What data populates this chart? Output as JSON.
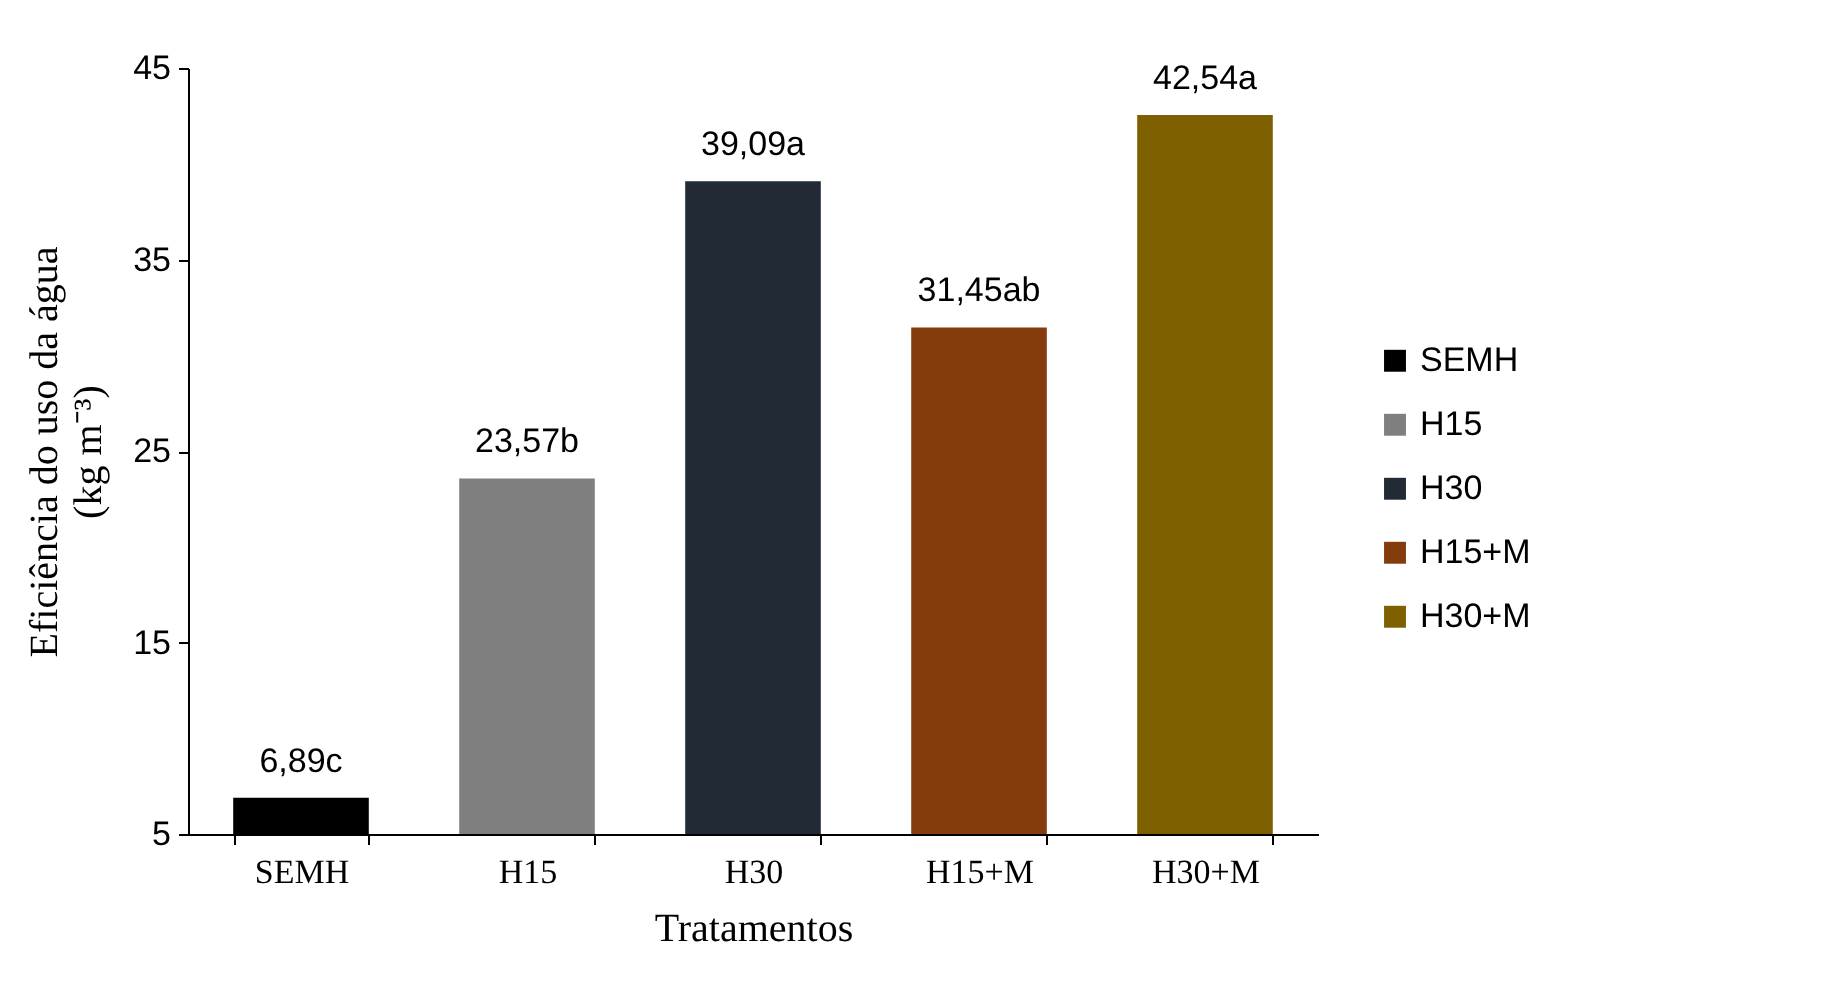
{
  "chart_data": {
    "type": "bar",
    "xlabel": "Tratamentos",
    "ylabel": "Eficiência  do uso da água\n(kg m⁻³)",
    "categories": [
      "SEMH",
      "H15",
      "H30",
      "H15+M",
      "H30+M"
    ],
    "series": [
      {
        "name": "SEMH",
        "color": "#000000",
        "values": [
          6.89,
          null,
          null,
          null,
          null
        ],
        "value_labels": [
          "6,89c",
          null,
          null,
          null,
          null
        ]
      },
      {
        "name": "H15",
        "color": "#7f7f7f",
        "values": [
          null,
          23.57,
          null,
          null,
          null
        ],
        "value_labels": [
          null,
          "23,57b",
          null,
          null,
          null
        ]
      },
      {
        "name": "H30",
        "color": "#222a35",
        "values": [
          null,
          null,
          39.09,
          null,
          null
        ],
        "value_labels": [
          null,
          null,
          "39,09a",
          null,
          null
        ]
      },
      {
        "name": "H15+M",
        "color": "#843c0c",
        "values": [
          null,
          null,
          null,
          31.45,
          null
        ],
        "value_labels": [
          null,
          null,
          null,
          "31,45ab",
          null
        ]
      },
      {
        "name": "H30+M",
        "color": "#7f6000",
        "values": [
          null,
          null,
          null,
          null,
          42.54
        ],
        "value_labels": [
          null,
          null,
          null,
          null,
          "42,54a"
        ]
      }
    ],
    "ylim": [
      5,
      45
    ],
    "yticks": [
      5,
      15,
      25,
      35,
      45
    ],
    "legend": "right"
  }
}
